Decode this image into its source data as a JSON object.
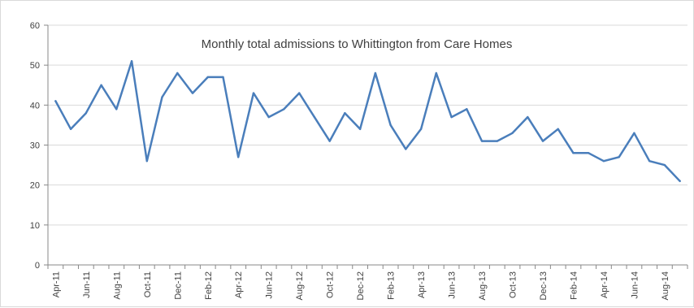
{
  "chart_data": {
    "type": "line",
    "title": "Monthly total admissions to Whittington from Care Homes",
    "xlabel": "",
    "ylabel": "",
    "ylim": [
      0,
      60
    ],
    "yticks": [
      0,
      10,
      20,
      30,
      40,
      50,
      60
    ],
    "grid": true,
    "legend": "none",
    "line_color": "#4a7ebb",
    "grid_color": "#d9d9d9",
    "x": [
      "Apr-11",
      "May-11",
      "Jun-11",
      "Jul-11",
      "Aug-11",
      "Sep-11",
      "Oct-11",
      "Nov-11",
      "Dec-11",
      "Jan-12",
      "Feb-12",
      "Mar-12",
      "Apr-12",
      "May-12",
      "Jun-12",
      "Jul-12",
      "Aug-12",
      "Sep-12",
      "Oct-12",
      "Nov-12",
      "Dec-12",
      "Jan-13",
      "Feb-13",
      "Mar-13",
      "Apr-13",
      "May-13",
      "Jun-13",
      "Jul-13",
      "Aug-13",
      "Sep-13",
      "Oct-13",
      "Nov-13",
      "Dec-13",
      "Jan-14",
      "Feb-14",
      "Mar-14",
      "Apr-14",
      "May-14",
      "Jun-14",
      "Jul-14",
      "Aug-14",
      "Sep-14"
    ],
    "x_tick_labels": [
      "Apr-11",
      "Jun-11",
      "Aug-11",
      "Oct-11",
      "Dec-11",
      "Feb-12",
      "Apr-12",
      "Jun-12",
      "Aug-12",
      "Oct-12",
      "Dec-12",
      "Feb-13",
      "Apr-13",
      "Jun-13",
      "Aug-13",
      "Oct-13",
      "Dec-13",
      "Feb-14",
      "Apr-14",
      "Jun-14",
      "Aug-14"
    ],
    "series": [
      {
        "values": [
          41,
          34,
          38,
          45,
          39,
          51,
          26,
          42,
          48,
          43,
          47,
          47,
          27,
          43,
          37,
          39,
          43,
          37,
          31,
          38,
          34,
          48,
          35,
          29,
          34,
          48,
          37,
          39,
          31,
          31,
          33,
          37,
          31,
          34,
          28,
          28,
          26,
          27,
          33,
          26,
          25,
          21
        ]
      }
    ]
  }
}
